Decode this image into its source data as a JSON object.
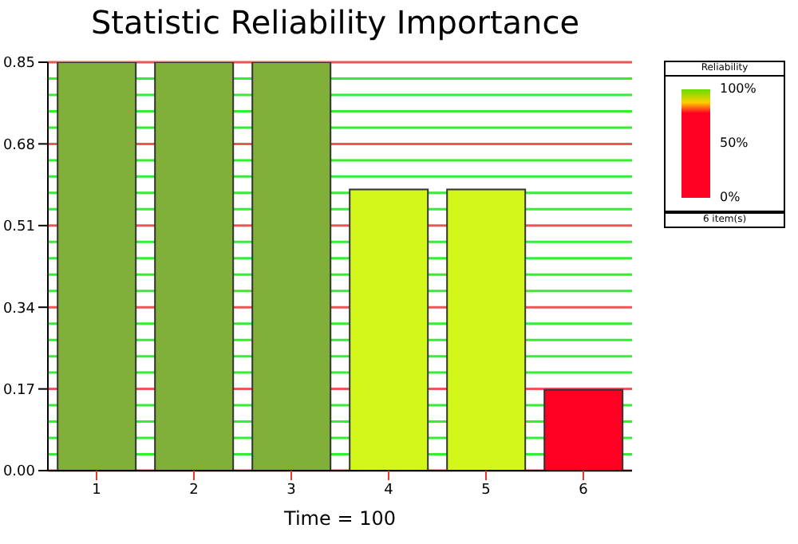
{
  "chart_data": {
    "type": "bar",
    "title": "Statistic Reliability Importance",
    "xlabel": "Time = 100",
    "categories": [
      "1",
      "2",
      "3",
      "4",
      "5",
      "6"
    ],
    "values": [
      0.85,
      0.85,
      0.85,
      0.585,
      0.585,
      0.168
    ],
    "colors": [
      "#80b03a",
      "#80b03a",
      "#80b03a",
      "#d4f71a",
      "#d4f71a",
      "#ff0022"
    ],
    "ylim": [
      0,
      0.85
    ],
    "yticks": [
      {
        "value": 0,
        "label": "0.00"
      },
      {
        "value": 0.034,
        "label": null
      },
      {
        "value": 0.068,
        "label": null
      },
      {
        "value": 0.102,
        "label": null
      },
      {
        "value": 0.136,
        "label": null
      },
      0.17,
      {
        "value": 0.204,
        "label": null
      },
      {
        "value": 0.238,
        "label": null
      },
      {
        "value": 0.272,
        "label": null
      },
      {
        "value": 0.306,
        "label": null
      },
      0.34,
      {
        "value": 0.374,
        "label": null
      },
      {
        "value": 0.408,
        "label": null
      },
      {
        "value": 0.442,
        "label": null
      },
      {
        "value": 0.476,
        "label": null
      },
      0.51,
      {
        "value": 0.544,
        "label": null
      },
      {
        "value": 0.578,
        "label": null
      },
      {
        "value": 0.612,
        "label": null
      },
      {
        "value": 0.646,
        "label": null
      },
      0.68,
      {
        "value": 0.714,
        "label": null
      },
      {
        "value": 0.748,
        "label": null
      },
      {
        "value": 0.782,
        "label": null
      },
      {
        "value": 0.816,
        "label": null
      },
      0.85
    ],
    "grid": "y",
    "clabel": "Reliability",
    "clim": [
      0,
      100
    ],
    "cticks": [
      {
        "value": 0,
        "label": "0%"
      },
      {
        "value": 50,
        "label": "50%"
      },
      {
        "value": 100,
        "label": "100%"
      }
    ],
    "annotations": [
      "6 item(s)"
    ]
  }
}
